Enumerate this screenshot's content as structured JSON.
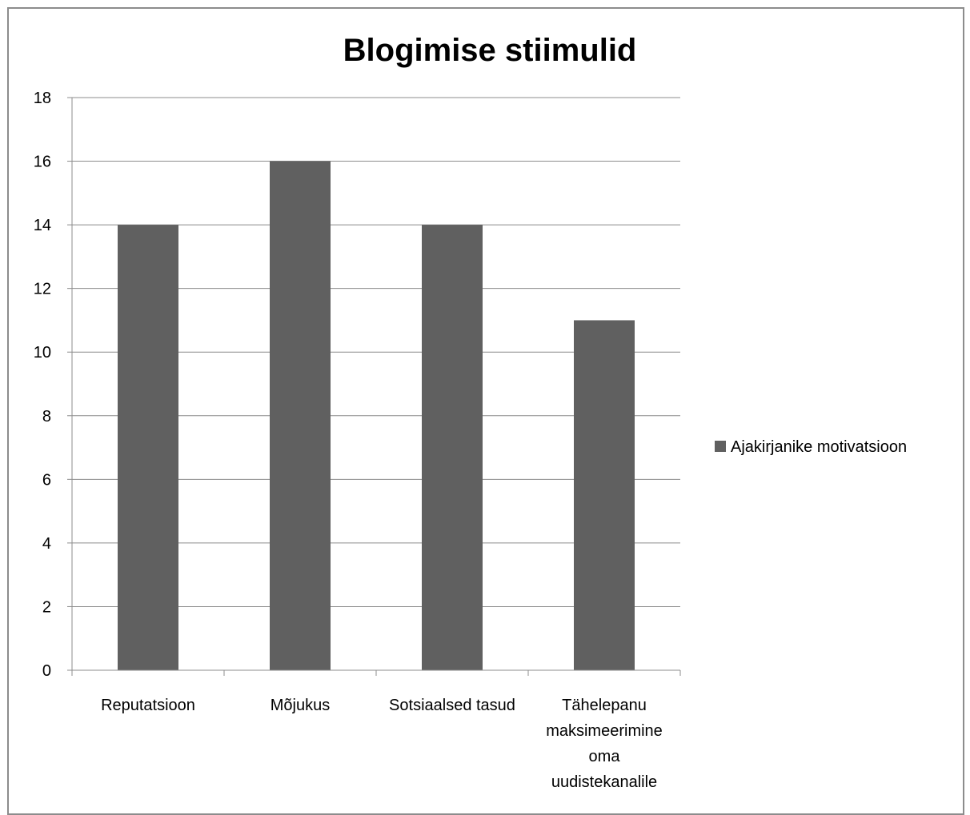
{
  "chart_data": {
    "type": "bar",
    "title": "Blogimise stiimulid",
    "categories": [
      [
        "Reputatsioon"
      ],
      [
        "Mõjukus"
      ],
      [
        "Sotsiaalsed tasud"
      ],
      [
        "Tähelepanu",
        "maksimeerimine",
        "oma",
        "uudistekanalile"
      ]
    ],
    "series": [
      {
        "name": "Ajakirjanike motivatsioon",
        "values": [
          14,
          16,
          14,
          11
        ],
        "color": "#606060"
      }
    ],
    "ylim": [
      0,
      18
    ],
    "yticks": [
      0,
      2,
      4,
      6,
      8,
      10,
      12,
      14,
      16,
      18
    ],
    "xlabel": "",
    "ylabel": "",
    "grid": true,
    "legend_position": "right"
  }
}
